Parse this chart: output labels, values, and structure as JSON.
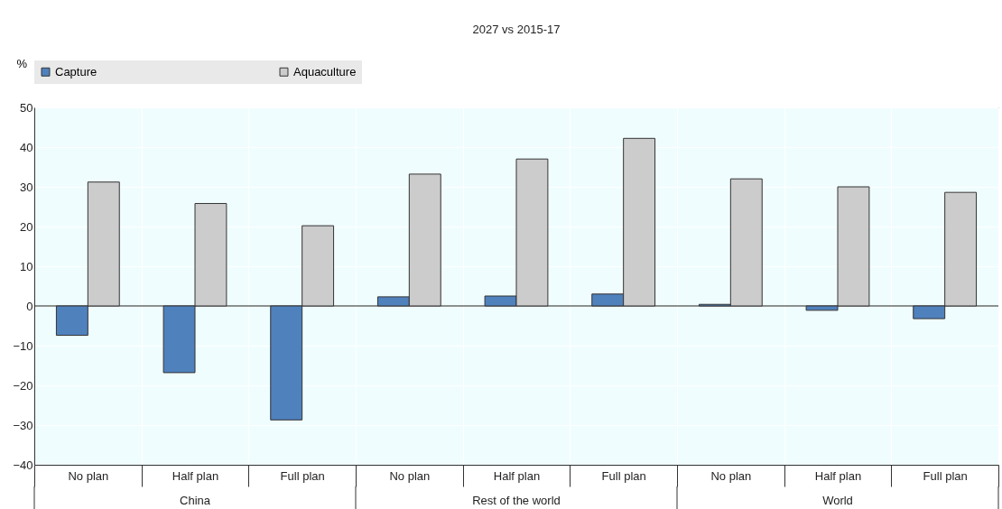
{
  "chart_data": {
    "type": "bar",
    "title": "2027 vs 2015-17",
    "ylabel": "%",
    "categories": [
      "No plan",
      "Half plan",
      "Full plan",
      "No plan",
      "Half plan",
      "Full plan",
      "No plan",
      "Half plan",
      "Full plan"
    ],
    "annotations": [
      "China",
      "Rest of the world",
      "World"
    ],
    "series": [
      {
        "name": "Capture",
        "color": "#4f81bd",
        "values": [
          -7.4,
          -16.8,
          -28.7,
          2.3,
          2.5,
          3.0,
          0.4,
          -1.1,
          -3.2
        ]
      },
      {
        "name": "Aquaculture",
        "color": "#cccccc",
        "values": [
          31.2,
          25.8,
          20.2,
          33.2,
          37.0,
          42.2,
          32.0,
          30.0,
          28.6
        ]
      }
    ],
    "ylim": [
      -40,
      50
    ],
    "yticks": [
      -40,
      -30,
      -20,
      -10,
      0,
      10,
      20,
      30,
      40,
      50
    ],
    "grid": true,
    "legend": "top"
  }
}
